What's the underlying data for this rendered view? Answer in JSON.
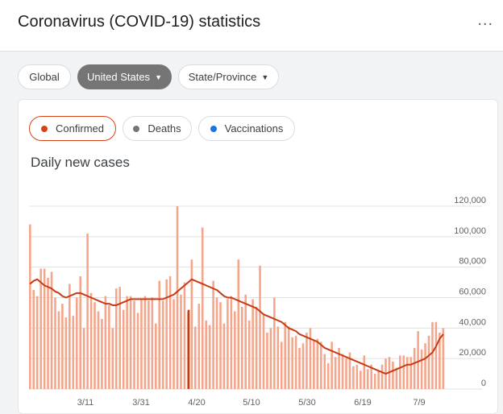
{
  "header": {
    "title": "Coronavirus (COVID-19) statistics",
    "more_label": "..."
  },
  "region_tabs": [
    {
      "label": "Global",
      "active": false,
      "caret": ""
    },
    {
      "label": "United States",
      "active": true,
      "caret": "▼"
    },
    {
      "label": "State/Province",
      "active": false,
      "caret": "▼"
    }
  ],
  "metrics": [
    {
      "label": "Confirmed",
      "color": "#d84315",
      "active": true
    },
    {
      "label": "Deaths",
      "color": "#757575",
      "active": false
    },
    {
      "label": "Vaccinations",
      "color": "#1a73e8",
      "active": false
    }
  ],
  "colors": {
    "bar": "#f4a58a",
    "line": "#c83a14",
    "marker": "#c83a14",
    "grid": "#e0e0e0"
  },
  "chart_data": {
    "type": "bar",
    "title": "Daily new cases",
    "y_ticks": [
      "120,000",
      "100,000",
      "80,000",
      "60,000",
      "40,000",
      "20,000",
      "0"
    ],
    "x_ticks": [
      "3/11",
      "3/31",
      "4/20",
      "5/10",
      "5/30",
      "6/19",
      "7/9"
    ],
    "ylim": [
      0,
      120000
    ],
    "marker_value": 52000,
    "daily_values": [
      108000,
      65000,
      61000,
      79000,
      79000,
      73000,
      77000,
      60000,
      51000,
      56000,
      47000,
      69000,
      48000,
      60000,
      74000,
      40000,
      102000,
      63000,
      57000,
      51000,
      46000,
      61000,
      55000,
      40000,
      66000,
      67000,
      52000,
      61000,
      61000,
      58000,
      50000,
      59000,
      61000,
      58000,
      60000,
      43000,
      71000,
      58000,
      72000,
      74000,
      59000,
      120000,
      62000,
      70000,
      51000,
      85000,
      41000,
      56000,
      106000,
      45000,
      42000,
      71000,
      60000,
      57000,
      43000,
      59000,
      61000,
      51000,
      85000,
      54000,
      62000,
      45000,
      59000,
      54000,
      81000,
      49000,
      37000,
      40000,
      60000,
      41000,
      31000,
      44000,
      41000,
      34000,
      35000,
      27000,
      30000,
      37000,
      40000,
      32000,
      33000,
      31000,
      23000,
      17000,
      31000,
      21000,
      27000,
      23000,
      20000,
      24000,
      15000,
      16000,
      12000,
      22000,
      13000,
      16000,
      10000,
      12000,
      16000,
      20000,
      21000,
      18000,
      14000,
      22000,
      22000,
      21000,
      21000,
      27000,
      38000,
      26000,
      30000,
      35000,
      44000,
      44000,
      37000,
      40000
    ],
    "avg_values": [
      69000,
      71000,
      72000,
      70000,
      68000,
      67000,
      66000,
      64000,
      63000,
      61000,
      60000,
      61000,
      62000,
      63000,
      63000,
      62000,
      61000,
      60000,
      59000,
      58000,
      57000,
      56000,
      56000,
      55000,
      55000,
      56000,
      57000,
      58000,
      59000,
      59000,
      59000,
      59000,
      59000,
      59000,
      59000,
      59000,
      59000,
      59000,
      60000,
      61000,
      62000,
      64000,
      66000,
      68000,
      70000,
      72000,
      71000,
      70000,
      69000,
      68000,
      67000,
      66000,
      65000,
      63000,
      61000,
      60000,
      60000,
      59000,
      58000,
      57000,
      56000,
      55000,
      54000,
      53000,
      51000,
      49000,
      48000,
      47000,
      46000,
      45000,
      44000,
      42000,
      40000,
      39000,
      38000,
      36000,
      35000,
      34000,
      33000,
      32000,
      31000,
      29000,
      27000,
      26000,
      25000,
      24000,
      23000,
      22000,
      21000,
      20000,
      19000,
      18000,
      17000,
      16000,
      15000,
      14000,
      13000,
      12000,
      11000,
      10000,
      11000,
      12000,
      13000,
      14000,
      15000,
      16000,
      16000,
      17000,
      18000,
      19000,
      20000,
      22000,
      24000,
      28000,
      33000,
      36000
    ]
  }
}
